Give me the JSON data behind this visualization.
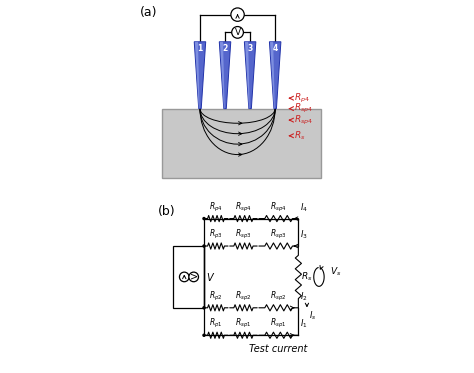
{
  "panel_a_label": "(a)",
  "panel_b_label": "(b)",
  "semiconductor_color": "#c8c8c8",
  "background_color": "#ffffff",
  "red_color": "#cc2222",
  "probe_color_main": "#5566cc",
  "probe_color_light": "#99aaee",
  "probe_color_dark": "#2233aa",
  "black": "#000000",
  "labels_a": [
    "$R_{p4}$",
    "$R_{sp4}$",
    "$R_{sp4}$",
    "$R_s$"
  ],
  "r_labels_rows": [
    [
      "$R_{p4}$",
      "$R_{sp4}$",
      "$R_{sp4}$",
      "$I_4$"
    ],
    [
      "$R_{p3}$",
      "$R_{sp3}$",
      "$R_{sp3}$",
      "$I_3$"
    ],
    [
      "$R_{p2}$",
      "$R_{sp2}$",
      "$R_{sp2}$",
      "$I_2$"
    ],
    [
      "$R_{p1}$",
      "$R_{sp1}$",
      "$R_{sp1}$",
      "$I_1$"
    ]
  ],
  "Rs_label": "$R_s$",
  "Vs_label": "$V_s$",
  "V_label": "$V$",
  "test_current_label": "Test current"
}
